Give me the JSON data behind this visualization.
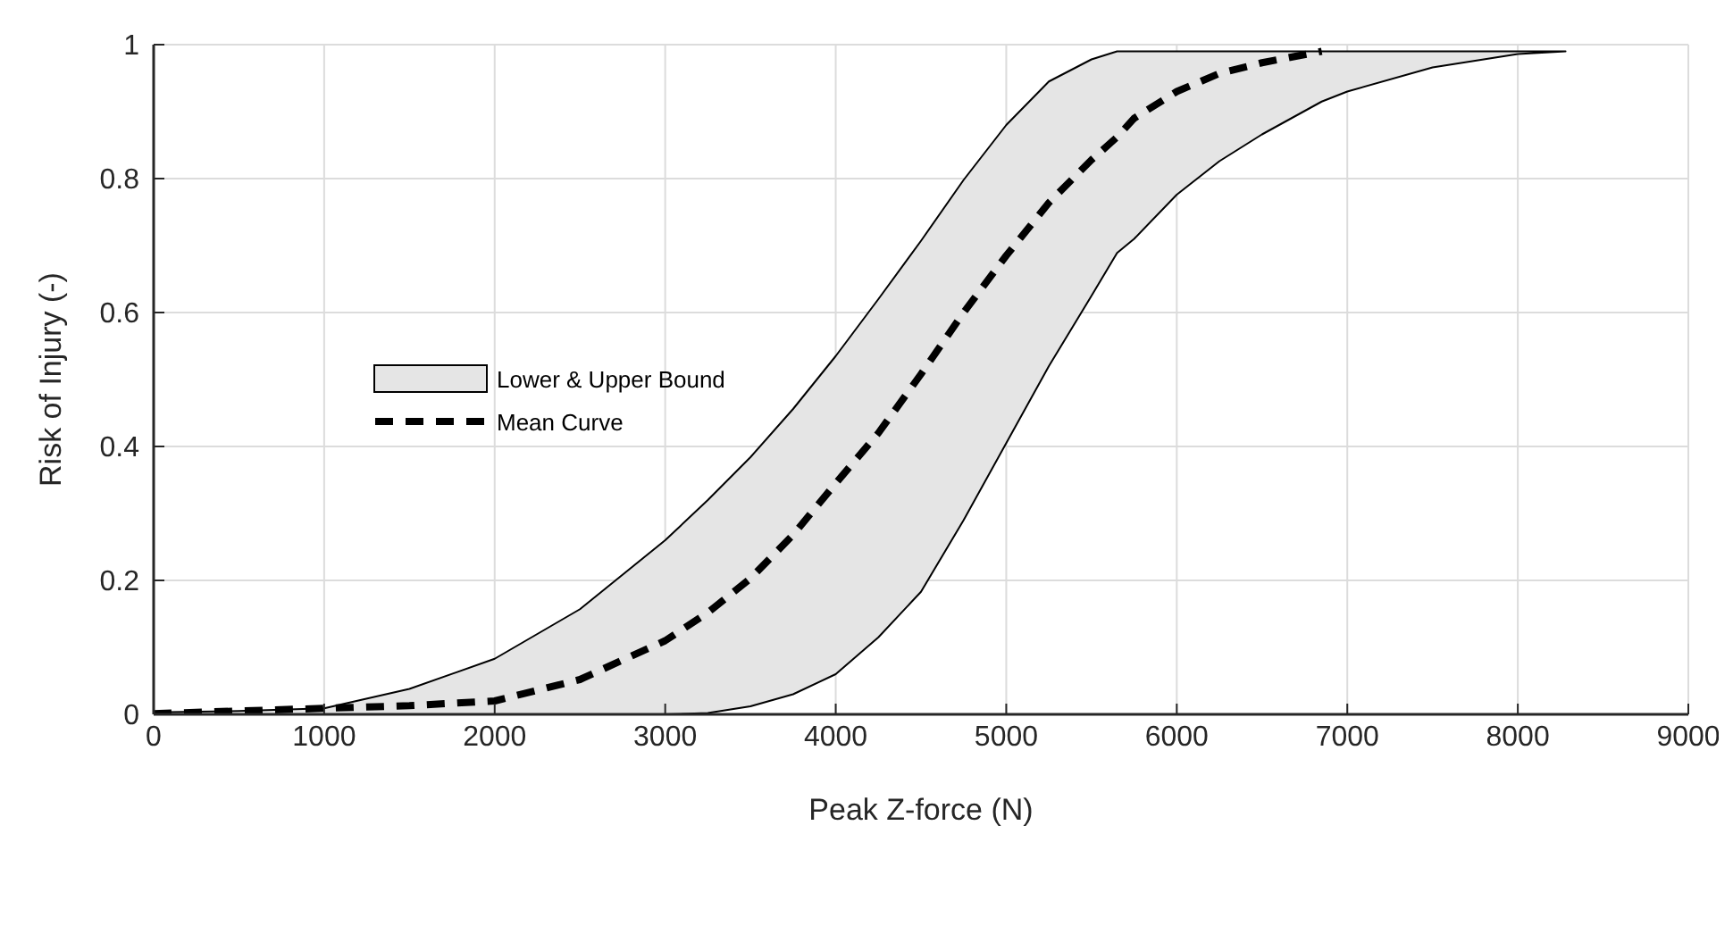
{
  "chart_data": {
    "type": "line",
    "xlabel": "Peak Z-force (N)",
    "ylabel": "Risk of Injury (-)",
    "x": [
      0,
      500,
      1000,
      1500,
      2000,
      2500,
      3000,
      3250,
      3500,
      3750,
      4000,
      4250,
      4500,
      4750,
      5000,
      5250,
      5500,
      5650,
      5750,
      6000,
      6250,
      6500,
      6850,
      7000,
      7500,
      8000,
      8280
    ],
    "series": [
      {
        "name": "Mean Curve",
        "color": "#000000",
        "values": [
          0.001,
          0.005,
          0.009,
          0.013,
          0.02,
          0.052,
          0.11,
          0.152,
          0.203,
          0.268,
          0.345,
          0.42,
          0.508,
          0.6,
          0.685,
          0.764,
          0.828,
          0.862,
          0.89,
          0.93,
          0.957,
          0.973,
          0.99,
          null,
          null,
          null,
          null
        ],
        "lower": [
          0,
          0,
          0,
          0,
          0,
          0,
          0,
          0.002,
          0.012,
          0.03,
          0.06,
          0.115,
          0.183,
          0.29,
          0.405,
          0.52,
          0.625,
          0.689,
          0.71,
          0.776,
          0.826,
          0.866,
          0.915,
          0.93,
          0.966,
          0.986,
          0.99
        ],
        "upper": [
          0.003,
          0.005,
          0.009,
          0.038,
          0.083,
          0.157,
          0.26,
          0.32,
          0.384,
          0.456,
          0.535,
          0.62,
          0.707,
          0.798,
          0.88,
          0.945,
          0.978,
          0.99,
          0.99,
          0.99,
          0.99,
          0.99,
          0.99,
          0.99,
          0.99,
          0.99,
          0.99
        ]
      }
    ],
    "annotations": [
      "Lower & Upper Bound"
    ],
    "xlim": [
      0,
      9000
    ],
    "xticks": [
      0,
      1000,
      2000,
      3000,
      4000,
      5000,
      6000,
      7000,
      8000,
      9000
    ],
    "ylim": [
      0,
      1
    ],
    "yticks": [
      0,
      0.2,
      0.4,
      0.6,
      0.8,
      1
    ],
    "grid": true,
    "legend": "left",
    "marker": "none",
    "line_style": "dashed"
  }
}
